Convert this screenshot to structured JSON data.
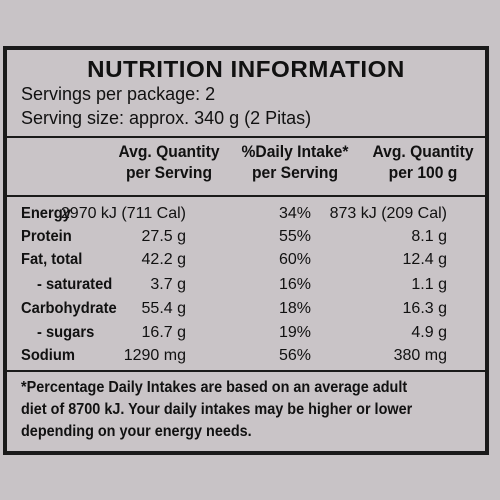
{
  "panel": {
    "title": "NUTRITION INFORMATION",
    "servings_per_package": "Servings per package: 2",
    "serving_size": "Serving size: approx. 340 g (2 Pitas)"
  },
  "columns": {
    "per_serving": [
      "Avg. Quantity",
      "per Serving"
    ],
    "daily_intake": [
      "%Daily Intake*",
      "per Serving"
    ],
    "per_100g": [
      "Avg. Quantity",
      "per 100 g"
    ]
  },
  "rows": [
    {
      "label": "Energy",
      "indent": false,
      "per_serving": "2970 kJ (711 Cal)",
      "daily_intake": "34%",
      "per_100g": "873 kJ (209 Cal)"
    },
    {
      "label": "Protein",
      "indent": false,
      "per_serving": "27.5 g",
      "daily_intake": "55%",
      "per_100g": "8.1 g"
    },
    {
      "label": "Fat, total",
      "indent": false,
      "per_serving": "42.2 g",
      "daily_intake": "60%",
      "per_100g": "12.4 g"
    },
    {
      "label": "- saturated",
      "indent": true,
      "per_serving": "3.7 g",
      "daily_intake": "16%",
      "per_100g": "1.1 g"
    },
    {
      "label": "Carbohydrate",
      "indent": false,
      "per_serving": "55.4 g",
      "daily_intake": "18%",
      "per_100g": "16.3 g"
    },
    {
      "label": "- sugars",
      "indent": true,
      "per_serving": "16.7 g",
      "daily_intake": "19%",
      "per_100g": "4.9 g"
    },
    {
      "label": "Sodium",
      "indent": false,
      "per_serving": "1290 mg",
      "daily_intake": "56%",
      "per_100g": "380 mg"
    }
  ],
  "footnote": {
    "lines": [
      "*Percentage Daily Intakes are based on an average adult",
      "diet of 8700 kJ. Your daily intakes may be higher or lower",
      "depending on your energy needs."
    ]
  }
}
